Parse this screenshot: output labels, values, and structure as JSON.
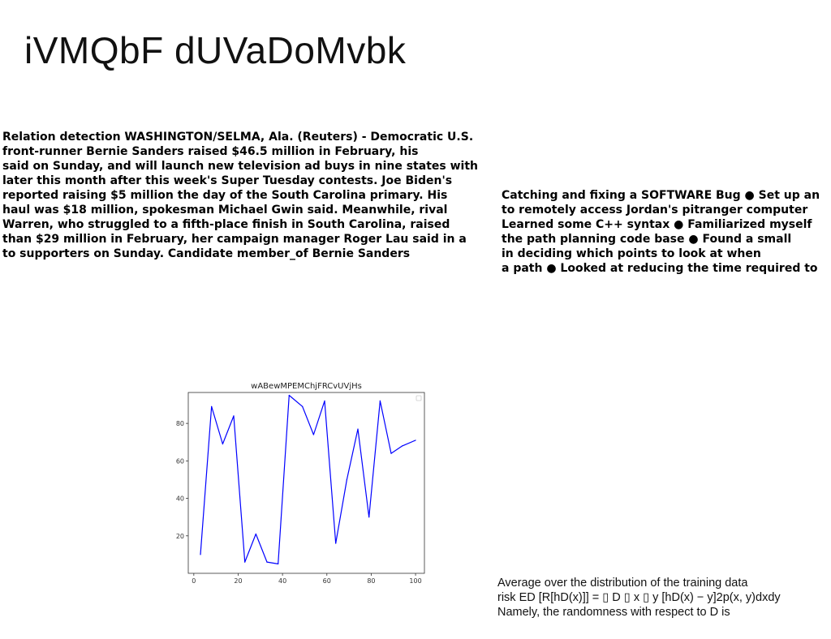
{
  "title": "iVMQbF dUVaDoMvbk",
  "left_paragraph": [
    "Relation detection WASHINGTON/SELMA, Ala. (Reuters) - Democratic U.S.",
    "front-runner Bernie Sanders raised $46.5 million in February, his",
    "said on Sunday, and will launch new television ad buys in nine states with",
    "later this month after this week's Super Tuesday contests. Joe Biden's",
    "reported raising $5 million the day of the South Carolina primary. His",
    "haul was $18 million, spokesman Michael Gwin said. Meanwhile, rival",
    "Warren, who struggled to a fifth-place finish in South Carolina, raised",
    "than $29 million in February, her campaign manager Roger Lau said in a",
    "to supporters on Sunday. Candidate member_of Bernie Sanders"
  ],
  "right_paragraph": [
    "Catching and fixing a SOFTWARE Bug ● Set up an",
    "to remotely access Jordan's pitranger computer",
    "Learned some C++ syntax ● Familiarized myself",
    "the path planning code base ● Found a small",
    "in deciding which points to look at when",
    "a path ● Looked at reducing the time required to"
  ],
  "note_lines": [
    "Average over the distribution of the training data",
    "risk ED [R[hD(x)]] = ▯ D ▯ x ▯ y [hD(x) − y]2p(x, y)dxdy",
    "Namely, the randomness with respect to D is"
  ],
  "chart_data": {
    "type": "line",
    "title": "wABewMPEMChjFRCvUVjHs",
    "xlabel": "",
    "ylabel": "",
    "xlim": [
      -2.5,
      104
    ],
    "ylim": [
      0,
      96.5
    ],
    "xticks": [
      0,
      20,
      40,
      60,
      80,
      100
    ],
    "yticks": [
      20,
      40,
      60,
      80
    ],
    "grid": false,
    "legend": "top-right (empty)",
    "series": [
      {
        "color": "#0000ff",
        "x": [
          3,
          8,
          13,
          18,
          23,
          28,
          33,
          38,
          43,
          49,
          54,
          59,
          64,
          69,
          74,
          79,
          84,
          89,
          94,
          100
        ],
        "y": [
          10,
          89,
          69,
          84,
          6,
          21,
          6,
          5,
          95,
          89,
          74,
          92,
          16,
          50,
          77,
          30,
          92,
          64,
          68,
          71
        ]
      }
    ]
  }
}
